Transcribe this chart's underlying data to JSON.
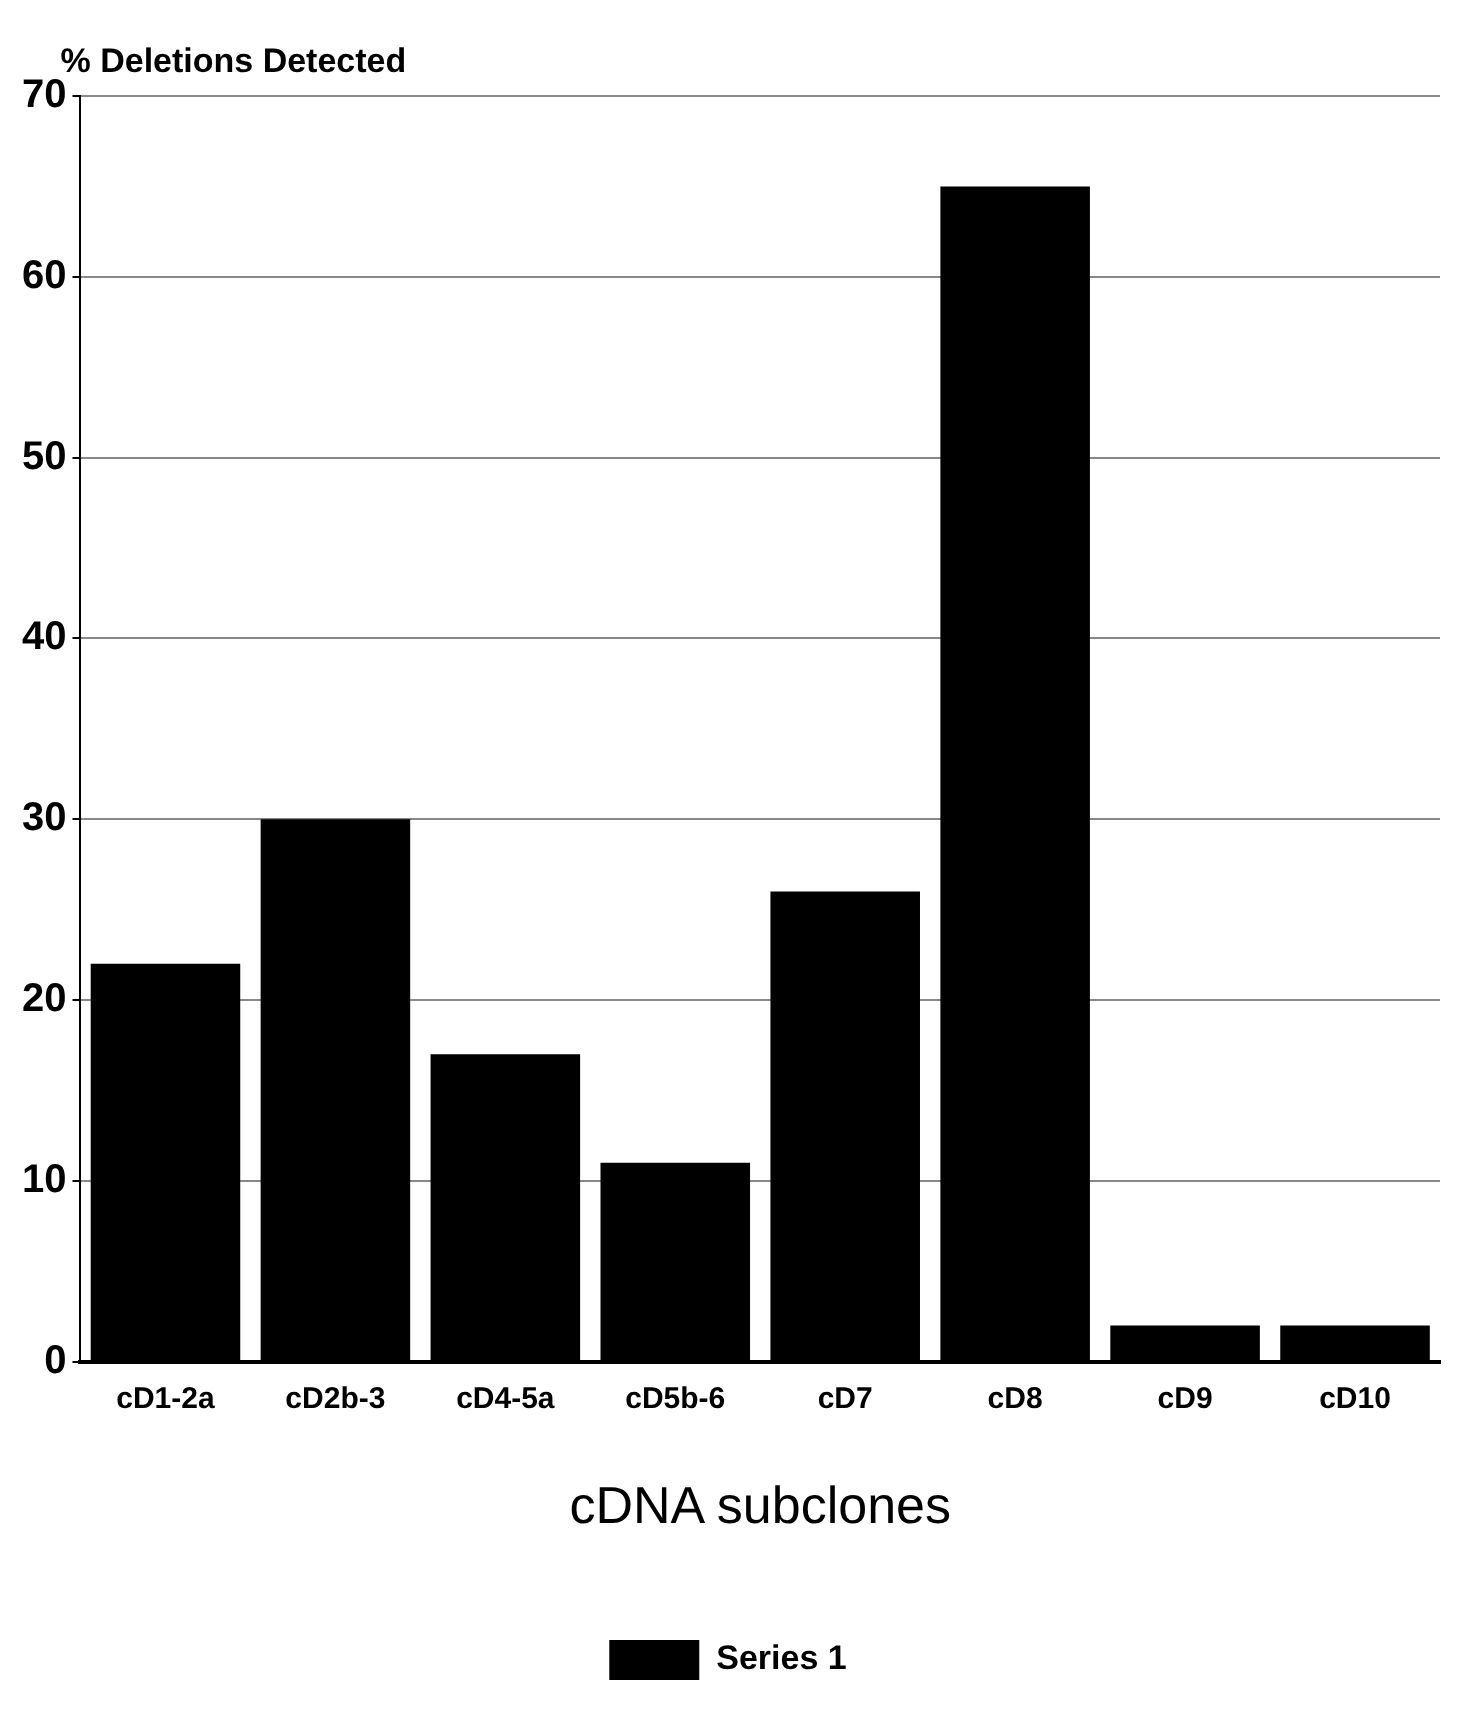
{
  "chart_data": {
    "type": "bar",
    "ylabel": "% Deletions Detected",
    "xlabel": "cDNA subclones",
    "categories": [
      "cD1-2a",
      "cD2b-3",
      "cD4-5a",
      "cD5b-6",
      "cD7",
      "cD8",
      "cD9",
      "cD10"
    ],
    "series": [
      {
        "name": "Series 1",
        "color": "#000000",
        "values": [
          22,
          30,
          17,
          11,
          26,
          65,
          2,
          2
        ]
      }
    ],
    "ylim": [
      0,
      70
    ],
    "yticks": [
      0,
      10,
      20,
      30,
      40,
      50,
      60,
      70
    ],
    "grid": "y",
    "legend": "bottom"
  }
}
